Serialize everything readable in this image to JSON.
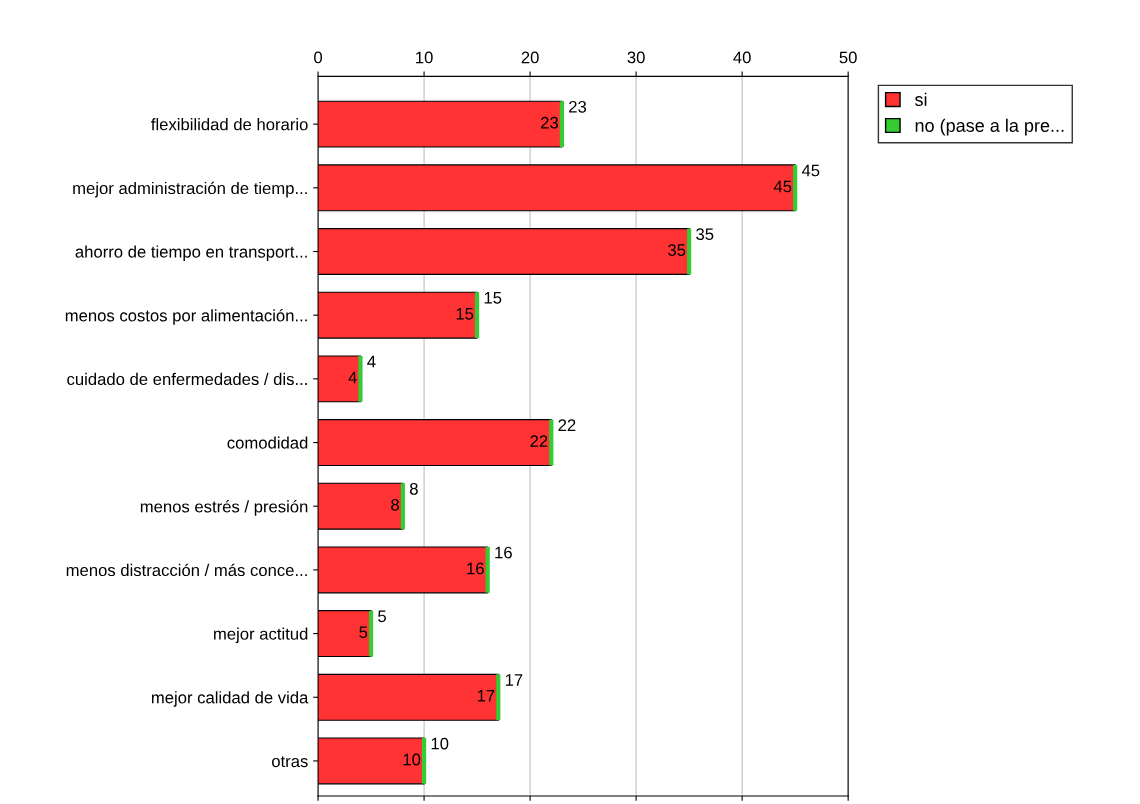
{
  "chart_data": {
    "type": "bar",
    "orientation": "horizontal",
    "stacked": true,
    "categories": [
      "flexibilidad de horario",
      "mejor administración de tiemp...",
      "ahorro de tiempo en transport...",
      "menos costos por alimentación...",
      "cuidado de enfermedades / dis...",
      "comodidad",
      "menos estrés / presión",
      "menos distracción / más conce...",
      "mejor actitud",
      "mejor calidad de vida",
      "otras"
    ],
    "series": [
      {
        "name": "si",
        "color": "#ff3333",
        "values": [
          23,
          45,
          35,
          15,
          4,
          22,
          8,
          16,
          5,
          17,
          10
        ],
        "value_labels": [
          "23",
          "45",
          "35",
          "15",
          "4",
          "22",
          "8",
          "16",
          "5",
          "17",
          "10"
        ]
      },
      {
        "name": "no (pase a la pre...",
        "color": "#33cc33",
        "values": [
          0,
          0,
          0,
          0,
          0,
          0,
          0,
          0,
          0,
          0,
          0
        ]
      }
    ],
    "totals": [
      "23",
      "45",
      "35",
      "15",
      "4",
      "22",
      "8",
      "16",
      "5",
      "17",
      "10"
    ],
    "xlim": [
      0,
      50
    ],
    "xticks": [
      0,
      10,
      20,
      30,
      40,
      50
    ],
    "grid": "x",
    "legend": "top right"
  }
}
